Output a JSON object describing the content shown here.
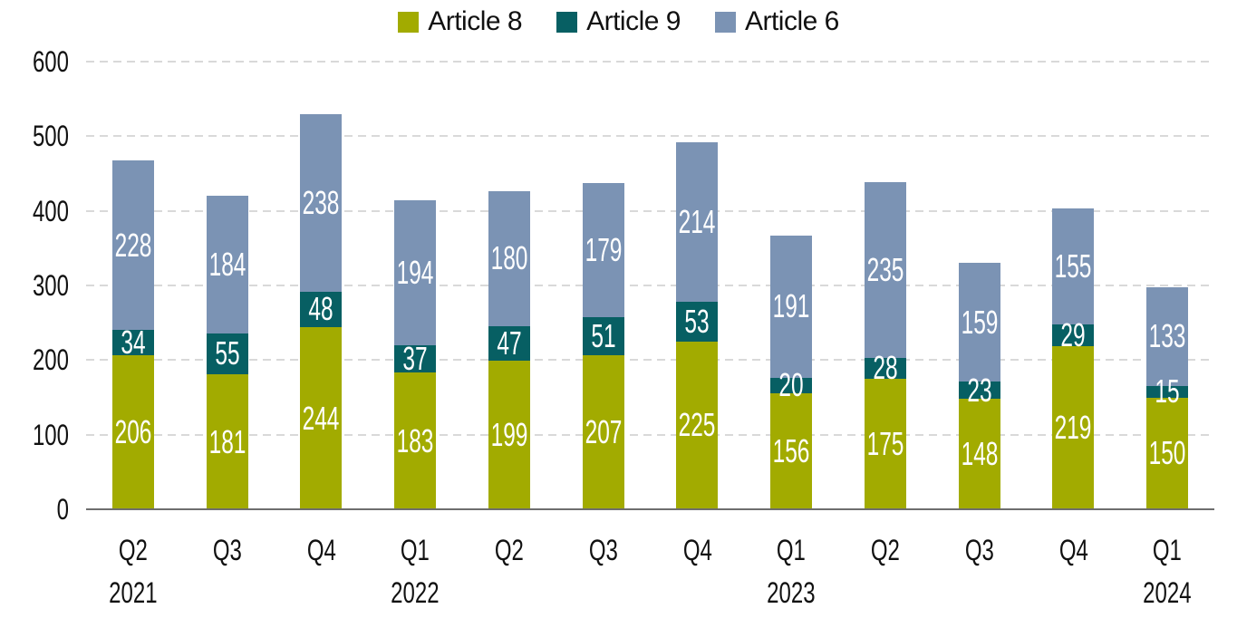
{
  "chart_data": {
    "type": "bar",
    "stacked": true,
    "title": "",
    "xlabel": "",
    "ylabel": "",
    "ylim": [
      0,
      600
    ],
    "y_ticks": [
      600,
      500,
      400,
      300,
      200,
      100,
      0
    ],
    "grid": "horizontal dashed",
    "legend_position": "top center",
    "categories": [
      "Q2 2021",
      "Q3 2021",
      "Q4 2021",
      "Q1 2022",
      "Q2 2022",
      "Q3 2022",
      "Q4 2022",
      "Q1 2023",
      "Q2 2023",
      "Q3 2023",
      "Q4 2023",
      "Q1 2024"
    ],
    "x_ticks": [
      {
        "quarter": "Q2",
        "year": "2021"
      },
      {
        "quarter": "Q3",
        "year": ""
      },
      {
        "quarter": "Q4",
        "year": ""
      },
      {
        "quarter": "Q1",
        "year": "2022"
      },
      {
        "quarter": "Q2",
        "year": ""
      },
      {
        "quarter": "Q3",
        "year": ""
      },
      {
        "quarter": "Q4",
        "year": ""
      },
      {
        "quarter": "Q1",
        "year": "2023"
      },
      {
        "quarter": "Q2",
        "year": ""
      },
      {
        "quarter": "Q3",
        "year": ""
      },
      {
        "quarter": "Q4",
        "year": ""
      },
      {
        "quarter": "Q1",
        "year": "2024"
      }
    ],
    "series": [
      {
        "name": "Article 8",
        "color": "#a2ab00",
        "values": [
          206,
          181,
          244,
          183,
          199,
          207,
          225,
          156,
          175,
          148,
          219,
          150
        ]
      },
      {
        "name": "Article 9",
        "color": "#075f63",
        "values": [
          34,
          55,
          48,
          37,
          47,
          51,
          53,
          20,
          28,
          23,
          29,
          15
        ]
      },
      {
        "name": "Article 6",
        "color": "#7b93b4",
        "values": [
          228,
          184,
          238,
          194,
          180,
          179,
          214,
          191,
          235,
          159,
          155,
          133
        ]
      }
    ],
    "bar_label_color": "#ffffff",
    "grid_color": "#d9d9d9",
    "axis_line_color": "#6e6e6e",
    "text_color": "#111111"
  }
}
